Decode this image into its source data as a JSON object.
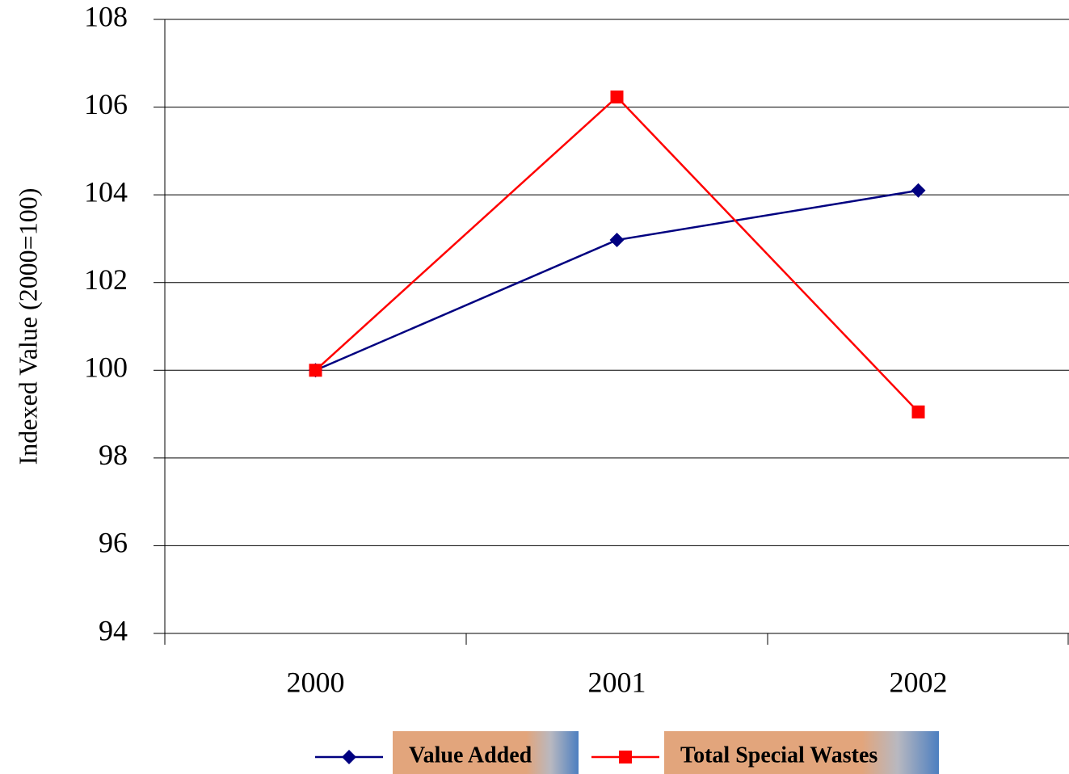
{
  "chart_data": {
    "type": "line",
    "y_label": "Indexed Value (2000=100)",
    "categories": [
      "2000",
      "2001",
      "2002"
    ],
    "series": [
      {
        "name": "Value Added",
        "color": "#000080",
        "marker": "diamond",
        "values": [
          100,
          102.97,
          104.1
        ]
      },
      {
        "name": "Total Special Wastes",
        "color": "#ff0000",
        "marker": "square",
        "values": [
          100,
          106.23,
          99.05
        ]
      }
    ],
    "ylim": [
      94,
      108
    ],
    "yticks": [
      94,
      96,
      98,
      100,
      102,
      104,
      106,
      108
    ],
    "grid": true
  }
}
